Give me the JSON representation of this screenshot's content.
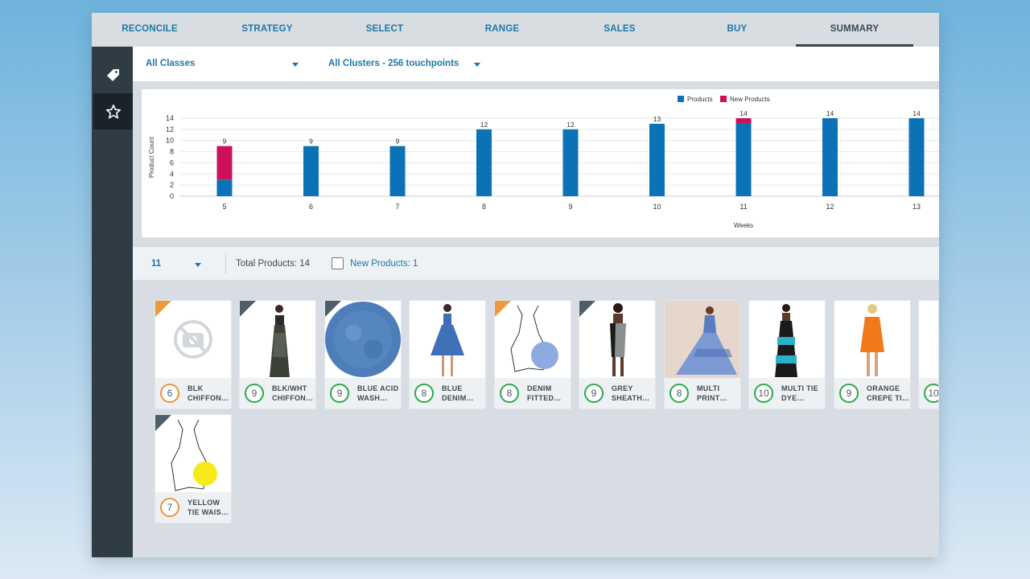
{
  "nav": {
    "tabs": [
      "RECONCILE",
      "STRATEGY",
      "SELECT",
      "RANGE",
      "SALES",
      "BUY",
      "SUMMARY"
    ],
    "active": "SUMMARY"
  },
  "sidebar": {
    "items": [
      "tag-icon",
      "star-icon"
    ],
    "active": "star-icon"
  },
  "filters": {
    "class": "All Classes",
    "cluster": "All Clusters - 256 touchpoints"
  },
  "chart_data": {
    "type": "bar",
    "stacked": true,
    "categories": [
      "5",
      "6",
      "7",
      "8",
      "9",
      "10",
      "11",
      "12",
      "13"
    ],
    "series": [
      {
        "name": "Products",
        "color": "#0b72b5",
        "values": [
          3,
          9,
          9,
          12,
          12,
          13,
          13,
          14,
          14
        ]
      },
      {
        "name": "New Products",
        "color": "#cc1159",
        "values": [
          6,
          0,
          0,
          0,
          0,
          0,
          1,
          0,
          0
        ]
      }
    ],
    "totals": [
      "9",
      "9",
      "9",
      "12",
      "12",
      "13",
      "14",
      "14",
      "14"
    ],
    "xlabel": "Weeks",
    "ylabel": "Product Count",
    "yticks": [
      "0",
      "2",
      "4",
      "6",
      "8",
      "10",
      "12",
      "14"
    ],
    "ylim": [
      0,
      14
    ],
    "grid": true,
    "legend": "top-right"
  },
  "toolbar": {
    "week": "11",
    "total_products": "Total Products: 14",
    "new_products": "New Products: 1"
  },
  "products": [
    {
      "count": "6",
      "name": "BLK\nCHIFFON…",
      "badge": "orange",
      "corner": "orange",
      "image": "no-image-icon"
    },
    {
      "count": "9",
      "name": "BLK/WHT\nCHIFFON…",
      "badge": "green",
      "corner": "gray",
      "image": "long-print-dress"
    },
    {
      "count": "9",
      "name": "BLUE ACID\nWASH…",
      "badge": "green",
      "corner": "gray",
      "image": "denim-fabric-swatch"
    },
    {
      "count": "8",
      "name": "BLUE\nDENIM…",
      "badge": "green",
      "corner": "none",
      "image": "denim-dress"
    },
    {
      "count": "8",
      "name": "DENIM\nFITTED…",
      "badge": "green",
      "corner": "orange",
      "image": "dress-sketch"
    },
    {
      "count": "9",
      "name": "GREY\nSHEATH…",
      "badge": "green",
      "corner": "gray",
      "image": "grey-sheath-dress"
    },
    {
      "count": "8",
      "name": "MULTI\nPRINT…",
      "badge": "green",
      "corner": "none",
      "image": "multi-print-gown"
    },
    {
      "count": "10",
      "name": "MULTI TIE\nDYE…",
      "badge": "green",
      "corner": "none",
      "image": "tie-dye-maxi"
    },
    {
      "count": "9",
      "name": "ORANGE\nCREPE TI…",
      "badge": "green",
      "corner": "none",
      "image": "orange-crepe-dress"
    },
    {
      "count": "10",
      "name": "",
      "badge": "green",
      "corner": "none",
      "image": "partial-card"
    },
    {
      "count": "7",
      "name": "YELLOW\nTIE WAIS…",
      "badge": "orange",
      "corner": "gray",
      "image": "dress-sketch-yellow"
    }
  ]
}
